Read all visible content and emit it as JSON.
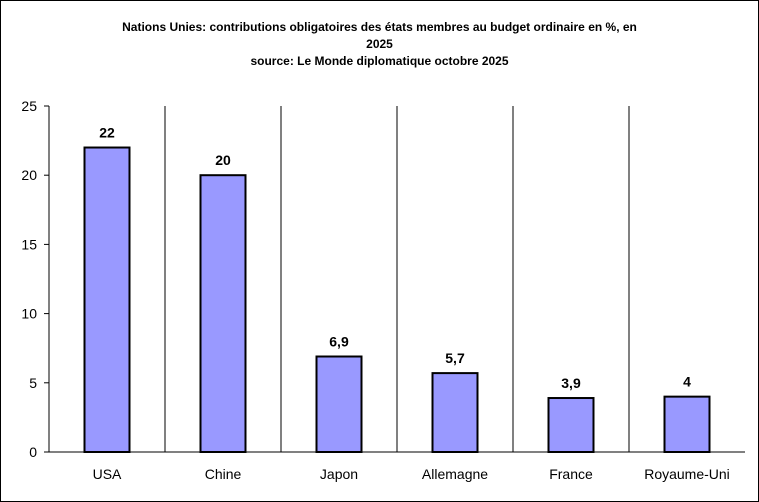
{
  "chart_data": {
    "type": "bar",
    "title_lines": [
      "Nations Unies: contributions obligatoires des états membres au budget ordinaire en %, en",
      "2025",
      "source: Le Monde diplomatique octobre 2025"
    ],
    "categories": [
      "USA",
      "Chine",
      "Japon",
      "Allemagne",
      "France",
      "Royaume-Uni"
    ],
    "values": [
      22,
      20,
      6.9,
      5.7,
      3.9,
      4
    ],
    "data_labels": [
      "22",
      "20",
      "6,9",
      "5,7",
      "3,9",
      "4"
    ],
    "ylim": [
      0,
      25
    ],
    "yticks": [
      0,
      5,
      10,
      15,
      20,
      25
    ],
    "ytick_labels": [
      "0",
      "5",
      "10",
      "15",
      "20",
      "25"
    ],
    "xlabel": "",
    "ylabel": "",
    "grid": "vertical category separators",
    "legend": "none",
    "colors": {
      "bar_fill": "#9999ff",
      "bar_stroke": "#000000",
      "axis": "#000000"
    }
  }
}
